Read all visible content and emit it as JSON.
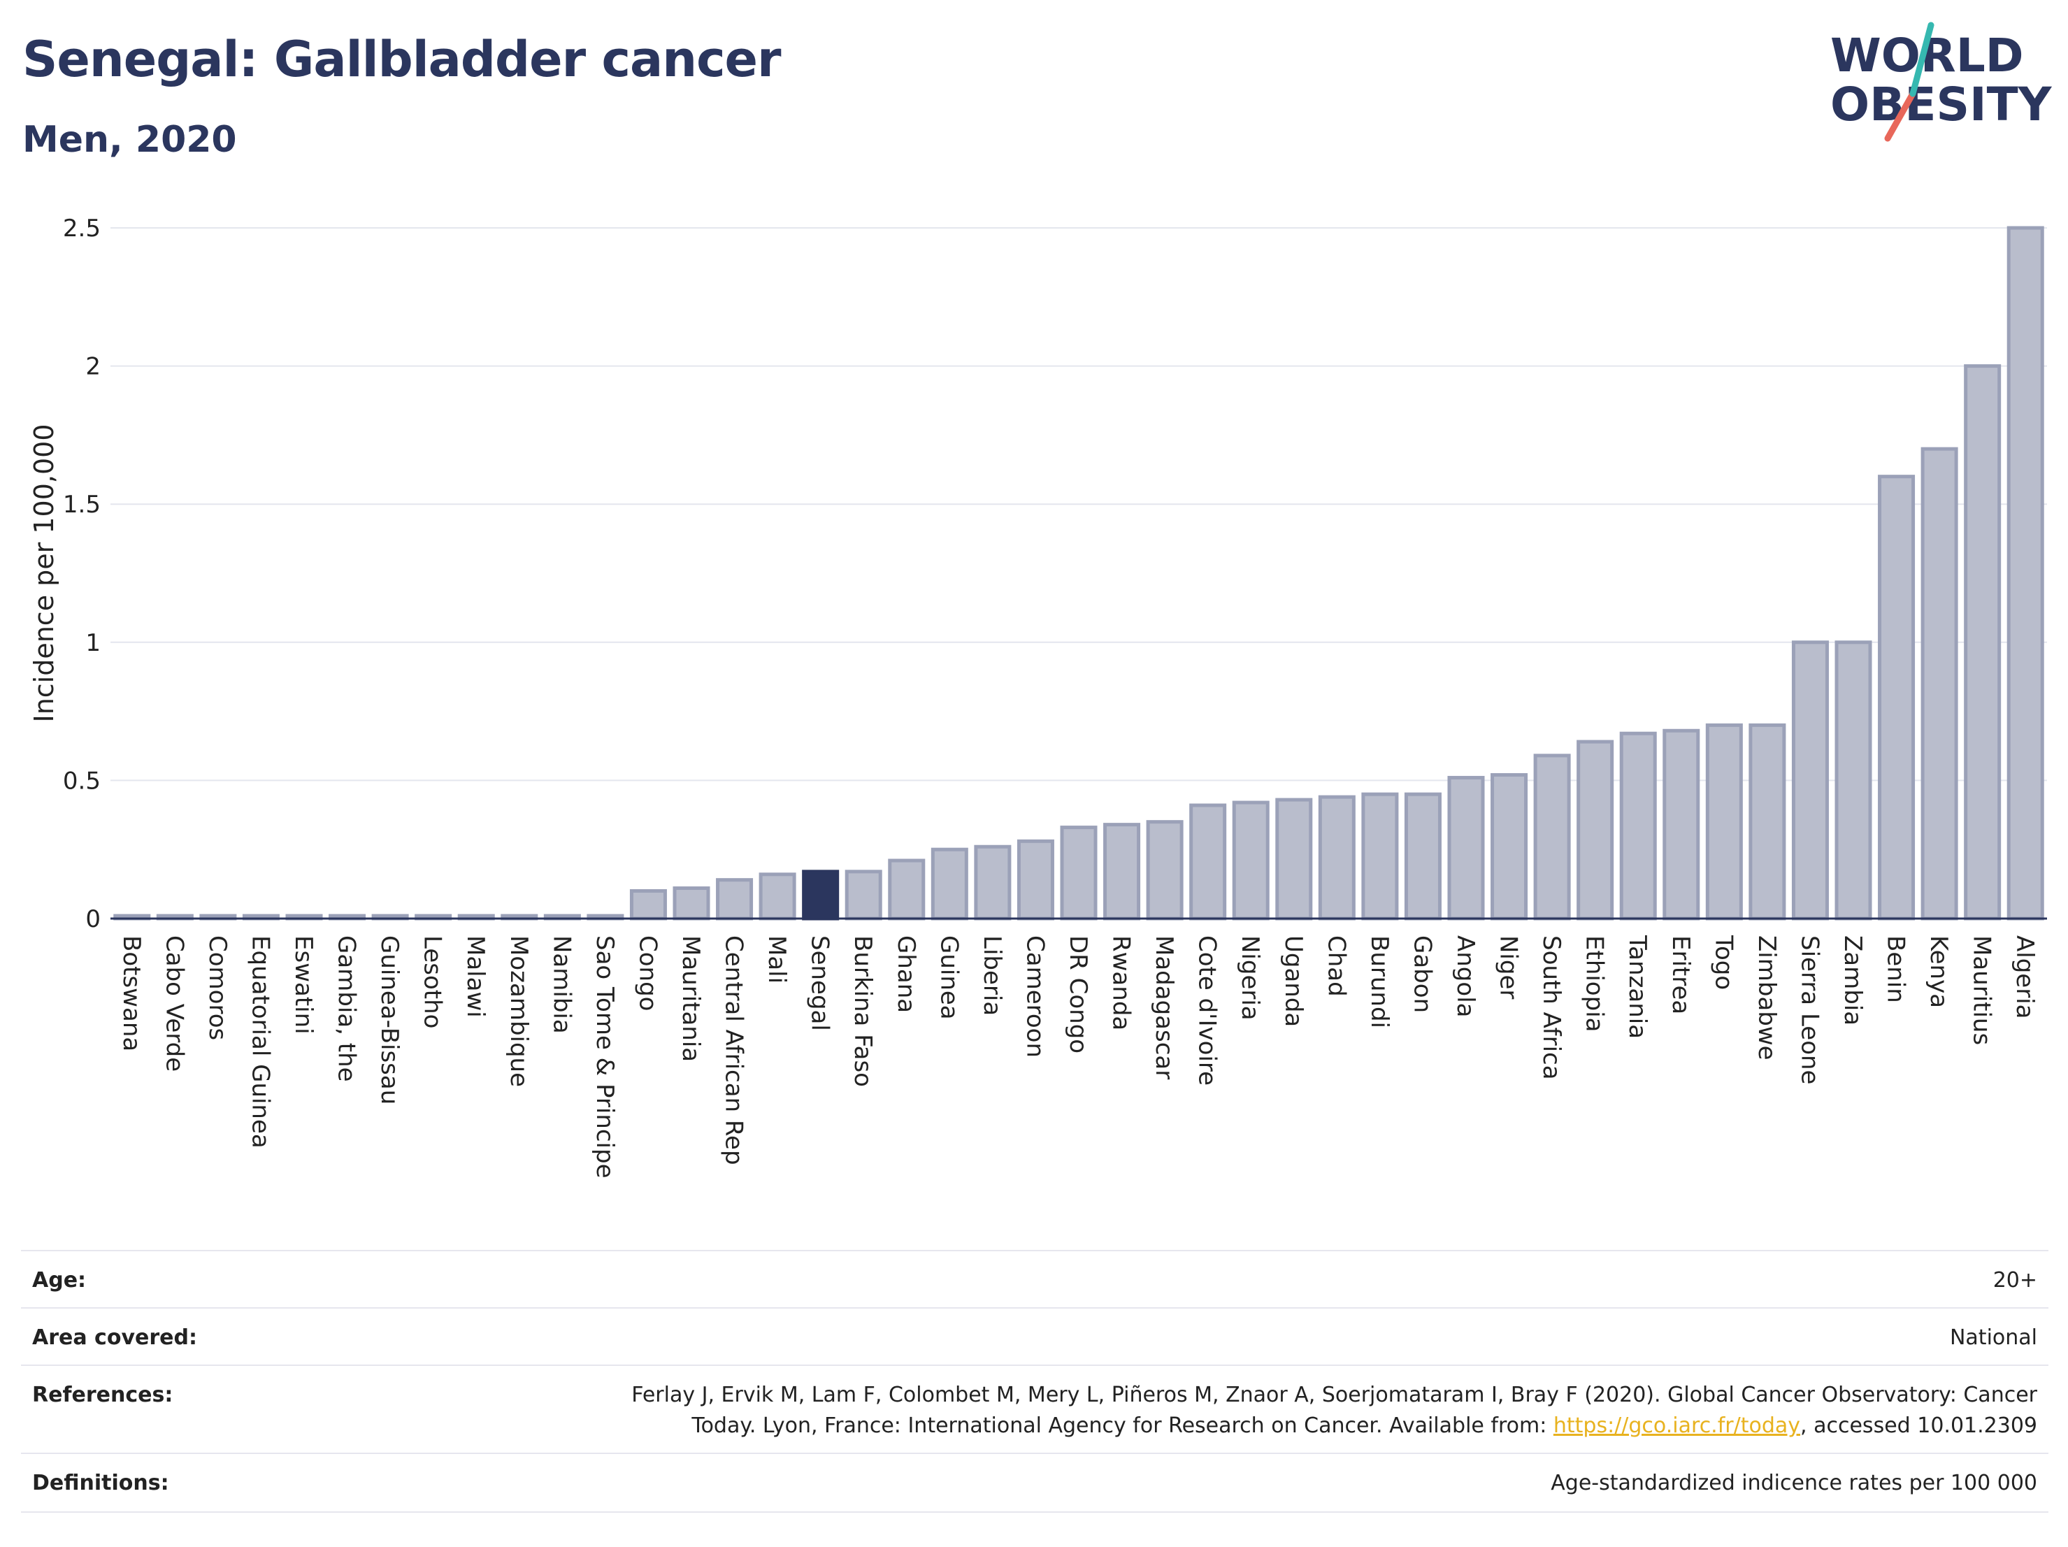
{
  "header": {
    "title": "Senegal: Gallbladder cancer",
    "subtitle": "Men, 2020"
  },
  "logo": {
    "line1": "WORLD",
    "line2": "OBESITY",
    "colors": {
      "text": "#2b365e",
      "slash_top": "#36b8b0",
      "slash_bottom": "#e8675a"
    }
  },
  "chart_data": {
    "type": "bar",
    "ylabel": "Incidence per 100,000",
    "xlabel": "",
    "ylim": [
      0,
      2.5
    ],
    "yticks": [
      "0",
      "0.5",
      "1",
      "1.5",
      "2",
      "2.5"
    ],
    "grid": true,
    "highlight": "Senegal",
    "colors": {
      "bar": "#b9bdcc",
      "bar_edge": "#9ba1b8",
      "highlight": "#2b365e"
    },
    "categories": [
      "Botswana",
      "Cabo Verde",
      "Comoros",
      "Equatorial Guinea",
      "Eswatini",
      "Gambia, the",
      "Guinea-Bissau",
      "Lesotho",
      "Malawi",
      "Mozambique",
      "Namibia",
      "Sao Tome & Principe",
      "Congo",
      "Mauritania",
      "Central African Rep",
      "Mali",
      "Senegal",
      "Burkina Faso",
      "Ghana",
      "Guinea",
      "Liberia",
      "Cameroon",
      "DR Congo",
      "Rwanda",
      "Madagascar",
      "Cote d'Ivoire",
      "Nigeria",
      "Uganda",
      "Chad",
      "Burundi",
      "Gabon",
      "Angola",
      "Niger",
      "South Africa",
      "Ethiopia",
      "Tanzania",
      "Eritrea",
      "Togo",
      "Zimbabwe",
      "Sierra Leone",
      "Zambia",
      "Benin",
      "Kenya",
      "Mauritius",
      "Algeria"
    ],
    "values": [
      0.01,
      0.01,
      0.01,
      0.01,
      0.01,
      0.01,
      0.01,
      0.01,
      0.01,
      0.01,
      0.01,
      0.01,
      0.1,
      0.11,
      0.14,
      0.16,
      0.17,
      0.17,
      0.21,
      0.25,
      0.26,
      0.28,
      0.33,
      0.34,
      0.35,
      0.41,
      0.42,
      0.43,
      0.44,
      0.45,
      0.45,
      0.51,
      0.52,
      0.59,
      0.64,
      0.67,
      0.68,
      0.7,
      0.7,
      1.0,
      1.0,
      1.6,
      1.7,
      2.0,
      2.5
    ]
  },
  "info": {
    "age_label": "Age:",
    "age_value": "20+",
    "area_label": "Area covered:",
    "area_value": "National",
    "references_label": "References:",
    "references_line1": "Ferlay J, Ervik M, Lam F, Colombet M, Mery L, Piñeros M, Znaor A, Soerjomataram I, Bray F (2020). Global Cancer Observatory: Cancer",
    "references_line2_pre": "Today. Lyon, France: International Agency for Research on Cancer. Available from: ",
    "references_link": "https://gco.iarc.fr/today",
    "references_line2_post": ", accessed 10.01.2309",
    "definitions_label": "Definitions:",
    "definitions_value": "Age-standardized indicence rates per 100 000"
  }
}
